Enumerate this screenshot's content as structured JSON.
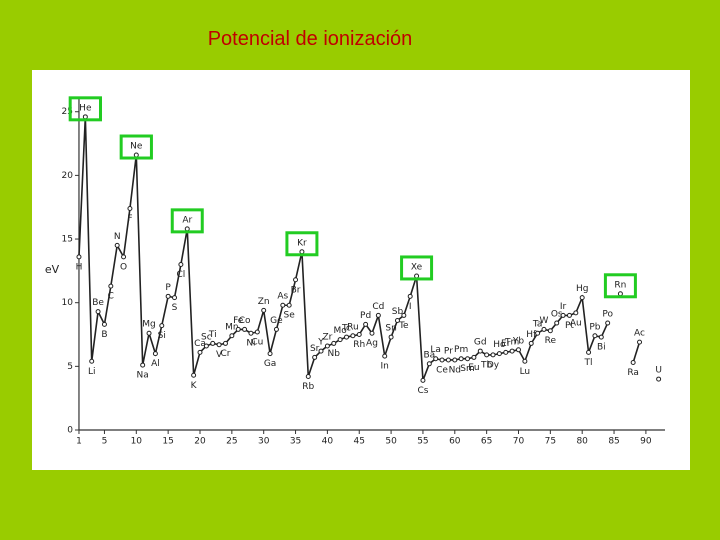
{
  "chart_data": {
    "type": "line",
    "title": "Potencial de ionización",
    "y_label": "eV",
    "x": [
      1,
      2,
      3,
      4,
      5,
      6,
      7,
      8,
      9,
      10,
      11,
      12,
      13,
      14,
      15,
      16,
      17,
      18,
      19,
      20,
      21,
      22,
      23,
      24,
      25,
      26,
      27,
      28,
      29,
      30,
      31,
      32,
      33,
      34,
      35,
      36,
      37,
      38,
      39,
      40,
      41,
      42,
      43,
      44,
      45,
      46,
      47,
      48,
      49,
      50,
      51,
      52,
      53,
      54,
      55,
      56,
      57,
      58,
      59,
      60,
      61,
      62,
      63,
      64,
      65,
      66,
      67,
      68,
      69,
      70,
      71,
      72,
      73,
      74,
      75,
      76,
      77,
      78,
      79,
      80,
      81,
      82,
      83,
      84,
      85,
      86,
      87,
      88,
      89,
      90,
      91,
      92
    ],
    "labels": [
      "H",
      "He",
      "Li",
      "Be",
      "B",
      "C",
      "N",
      "O",
      "F",
      "Ne",
      "Na",
      "Mg",
      "Al",
      "Si",
      "P",
      "S",
      "Cl",
      "Ar",
      "K",
      "Ca",
      "Sc",
      "Ti",
      "V",
      "Cr",
      "Mn",
      "Fe",
      "Co",
      "Ni",
      "Cu",
      "Zn",
      "Ga",
      "Ge",
      "As",
      "Se",
      "Br",
      "Kr",
      "Rb",
      "Sr",
      "Y",
      "Zr",
      "Nb",
      "Mo",
      "Tc",
      "Ru",
      "Rh",
      "Pd",
      "Ag",
      "Cd",
      "In",
      "Sn",
      "Sb",
      "Te",
      "I",
      "Xe",
      "Cs",
      "Ba",
      "La",
      "Ce",
      "Pr",
      "Nd",
      "Pm",
      "Sm",
      "Eu",
      "Gd",
      "Tb",
      "Dy",
      "Ho",
      "Er",
      "Tm",
      "Yb",
      "Lu",
      "Hf",
      "Ta",
      "W",
      "Re",
      "Os",
      "Ir",
      "Pt",
      "Au",
      "Hg",
      "Tl",
      "Pb",
      "Bi",
      "Po",
      null,
      "Rn",
      null,
      "Ra",
      "Ac",
      null,
      null,
      "U"
    ],
    "values": [
      13.6,
      24.6,
      5.4,
      9.3,
      8.3,
      11.3,
      14.5,
      13.6,
      17.4,
      21.6,
      5.1,
      7.6,
      6.0,
      8.2,
      10.5,
      10.4,
      13.0,
      15.8,
      4.3,
      6.1,
      6.6,
      6.8,
      6.7,
      6.8,
      7.4,
      7.9,
      7.9,
      7.6,
      7.7,
      9.4,
      6.0,
      7.9,
      9.8,
      9.8,
      11.8,
      14.0,
      4.2,
      5.7,
      6.2,
      6.6,
      6.8,
      7.1,
      7.3,
      7.4,
      7.5,
      8.3,
      7.6,
      9.0,
      5.8,
      7.3,
      8.6,
      9.0,
      10.5,
      12.1,
      3.9,
      5.2,
      5.6,
      5.5,
      5.5,
      5.5,
      5.6,
      5.6,
      5.7,
      6.2,
      5.9,
      5.9,
      6.0,
      6.1,
      6.2,
      6.3,
      5.4,
      6.8,
      7.6,
      7.9,
      7.8,
      8.4,
      9.0,
      9.0,
      9.2,
      10.4,
      6.1,
      7.4,
      7.3,
      8.4,
      null,
      10.7,
      null,
      5.3,
      6.9,
      null,
      null,
      4.0
    ],
    "color": "#222222",
    "highlight": [
      2,
      10,
      18,
      36,
      54,
      86
    ],
    "highlight_color": "#22cc22",
    "xlim": [
      0,
      93
    ],
    "ylim": [
      0,
      26
    ],
    "xticks": [
      1,
      5,
      10,
      15,
      20,
      25,
      30,
      35,
      40,
      45,
      50,
      55,
      60,
      65,
      70,
      75,
      80,
      85,
      90
    ],
    "yticks": [
      0,
      5,
      10,
      15,
      20,
      25
    ],
    "grid": false
  }
}
